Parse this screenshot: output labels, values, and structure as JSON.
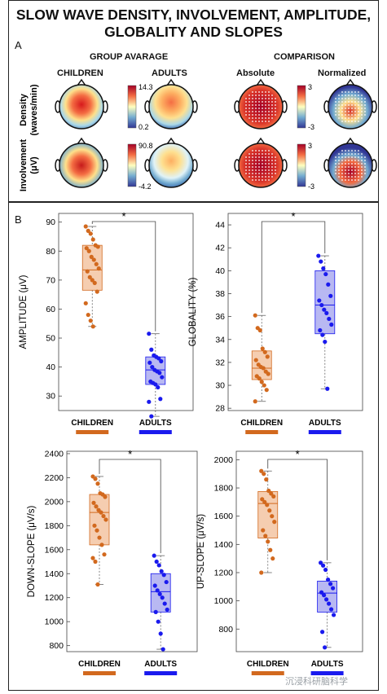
{
  "title_line1": "SLOW WAVE DENSITY, INVOLVEMENT, AMPLITUDE,",
  "title_line2": "GLOBALITY AND SLOPES",
  "panel_a": {
    "letter": "A",
    "group_average": "GROUP AVARAGE",
    "comparison": "COMPARISON",
    "children": "CHILDREN",
    "adults": "ADULTS",
    "absolute": "Absolute",
    "normalized": "Normalized",
    "row1_label_1": "Density",
    "row1_label_2": "(waves/min)",
    "row2_label_1": "Involvement",
    "row2_label_2": "(μV)",
    "cb1_max": "14.3",
    "cb1_min": "0.2",
    "cb2_max": "3",
    "cb2_min": "-3",
    "cb3_max": "90.8",
    "cb3_min": "-4.2",
    "cb4_max": "3",
    "cb4_min": "-3"
  },
  "panel_b": {
    "letter": "B"
  },
  "colors": {
    "children": "#d2691e",
    "adults": "#1a1aee",
    "child_box": "#f5cdb0",
    "adult_box": "#b8b8f2"
  },
  "chart_data": [
    {
      "type": "box",
      "ylabel": "AMPLITUDE (μV)",
      "categories": [
        "CHILDREN",
        "ADULTS"
      ],
      "yticks": [
        30,
        40,
        50,
        60,
        70,
        80,
        90
      ],
      "ylim": [
        25,
        93
      ],
      "significance": "*",
      "series": [
        {
          "name": "CHILDREN",
          "min": 54,
          "q1": 66.5,
          "median": 73.5,
          "q3": 82,
          "max": 88.5,
          "points": [
            88.5,
            87,
            86,
            84,
            82,
            81.5,
            81,
            80,
            78,
            77,
            75.5,
            74,
            73,
            71,
            70,
            69,
            66,
            62,
            58,
            56,
            54
          ]
        },
        {
          "name": "ADULTS",
          "min": 23,
          "q1": 34,
          "median": 39,
          "q3": 43.5,
          "max": 51.5,
          "points": [
            51.5,
            46,
            44,
            43.5,
            43,
            42,
            41.5,
            40,
            39,
            38.5,
            38,
            36.5,
            35,
            34.5,
            34,
            33,
            29,
            28,
            23
          ]
        }
      ]
    },
    {
      "type": "box",
      "ylabel": "GLOBALITY (%)",
      "categories": [
        "CHILDREN",
        "ADULTS"
      ],
      "yticks": [
        28,
        30,
        32,
        34,
        36,
        38,
        40,
        42,
        44
      ],
      "ylim": [
        27.8,
        45
      ],
      "significance": "*",
      "series": [
        {
          "name": "CHILDREN",
          "min": 28.6,
          "q1": 30.5,
          "median": 31.5,
          "q3": 33,
          "max": 36.1,
          "points": [
            36.1,
            35,
            34.8,
            33.2,
            32.9,
            32.5,
            32.2,
            31.8,
            31.6,
            31.5,
            31.2,
            31,
            30.8,
            30.6,
            30.3,
            30,
            29.6,
            28.6
          ]
        },
        {
          "name": "ADULTS",
          "min": 29.7,
          "q1": 34.5,
          "median": 37,
          "q3": 40,
          "max": 41.3,
          "points": [
            41.3,
            40.8,
            40.2,
            39.7,
            38.8,
            37.8,
            37.4,
            37,
            36.6,
            36.3,
            35.8,
            35.3,
            34.8,
            34.4,
            33.8,
            29.7
          ]
        }
      ]
    },
    {
      "type": "box",
      "ylabel": "DOWN-SLOPE (μV/s)",
      "categories": [
        "CHILDREN",
        "ADULTS"
      ],
      "yticks": [
        800,
        1000,
        1200,
        1400,
        1600,
        1800,
        2000,
        2200,
        2400
      ],
      "ylim": [
        750,
        2420
      ],
      "significance": "*",
      "series": [
        {
          "name": "CHILDREN",
          "min": 1310,
          "q1": 1640,
          "median": 1910,
          "q3": 2060,
          "max": 2210,
          "points": [
            2210,
            2190,
            2150,
            2070,
            2060,
            2040,
            1990,
            1960,
            1930,
            1910,
            1880,
            1850,
            1800,
            1760,
            1700,
            1640,
            1560,
            1530,
            1500,
            1310
          ]
        },
        {
          "name": "ADULTS",
          "min": 770,
          "q1": 1080,
          "median": 1250,
          "q3": 1400,
          "max": 1550,
          "points": [
            1550,
            1500,
            1470,
            1420,
            1390,
            1330,
            1300,
            1260,
            1230,
            1200,
            1150,
            1100,
            1080,
            1000,
            900,
            770
          ]
        }
      ]
    },
    {
      "type": "box",
      "ylabel": "UP-SLOPE (μV/s)",
      "categories": [
        "CHILDREN",
        "ADULTS"
      ],
      "yticks": [
        800,
        1000,
        1200,
        1400,
        1600,
        1800,
        2000
      ],
      "ylim": [
        640,
        2060
      ],
      "significance": "*",
      "series": [
        {
          "name": "CHILDREN",
          "min": 1200,
          "q1": 1445,
          "median": 1690,
          "q3": 1775,
          "max": 1920,
          "points": [
            1920,
            1900,
            1860,
            1780,
            1760,
            1740,
            1720,
            1700,
            1680,
            1640,
            1600,
            1560,
            1500,
            1460,
            1420,
            1360,
            1300,
            1200
          ]
        },
        {
          "name": "ADULTS",
          "min": 670,
          "q1": 920,
          "median": 1055,
          "q3": 1140,
          "max": 1270,
          "points": [
            1270,
            1250,
            1220,
            1150,
            1120,
            1090,
            1060,
            1040,
            1010,
            980,
            940,
            900,
            780,
            670
          ]
        }
      ]
    }
  ],
  "watermark": "沉浸科研脑科学"
}
